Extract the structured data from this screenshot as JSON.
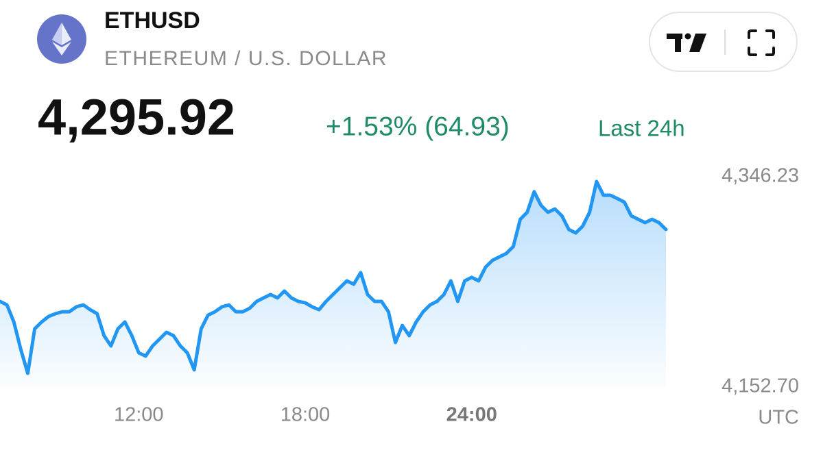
{
  "chart_data": {
    "type": "line",
    "title": "ETHUSD",
    "subtitle": "ETHEREUM / U.S. DOLLAR",
    "price": "4,295.92",
    "change": "+1.53% (64.93)",
    "change_period": "Last 24h",
    "timezone": "UTC",
    "x": [
      7,
      7.25,
      7.5,
      7.75,
      8,
      8.25,
      8.5,
      8.75,
      9,
      9.25,
      9.5,
      9.75,
      10,
      10.25,
      10.5,
      10.75,
      11,
      11.25,
      11.5,
      11.75,
      12,
      12.25,
      12.5,
      12.75,
      13,
      13.25,
      13.5,
      13.75,
      14,
      14.25,
      14.5,
      14.75,
      15,
      15.25,
      15.5,
      15.75,
      16,
      16.25,
      16.5,
      16.75,
      17,
      17.25,
      17.5,
      17.75,
      18,
      18.25,
      18.5,
      18.75,
      19,
      19.25,
      19.5,
      19.75,
      20,
      20.25,
      20.5,
      20.75,
      21,
      21.25,
      21.5,
      21.75,
      22,
      22.25,
      22.5,
      22.75,
      23,
      23.25,
      23.5,
      23.75,
      24,
      24.25,
      24.5,
      24.75,
      25,
      25.25,
      25.5,
      25.75,
      26,
      26.25,
      26.5,
      26.75,
      27,
      27.25,
      27.5,
      27.75,
      28,
      28.25,
      28.5,
      28.75,
      29,
      29.25,
      29.5,
      29.75,
      30,
      30.25,
      30.5,
      30.75,
      31
    ],
    "series": [
      {
        "name": "ETHUSD",
        "color": "#2196f3",
        "values": [
          4231.5,
          4228.3,
          4212.6,
          4187.4,
          4165.3,
          4206.3,
          4212.6,
          4217.6,
          4220.2,
          4222.0,
          4222.0,
          4226.5,
          4228.3,
          4223.9,
          4220.2,
          4200.0,
          4190.5,
          4206.3,
          4212.6,
          4200.0,
          4184.2,
          4181.1,
          4190.5,
          4196.8,
          4203.1,
          4200.0,
          4190.5,
          4184.2,
          4168.5,
          4206.3,
          4218.9,
          4222.0,
          4226.5,
          4228.3,
          4222.0,
          4222.0,
          4225.2,
          4231.5,
          4234.7,
          4237.8,
          4234.7,
          4241.0,
          4234.7,
          4231.5,
          4230.2,
          4226.5,
          4223.9,
          4231.5,
          4237.8,
          4244.1,
          4250.4,
          4247.3,
          4258.0,
          4237.8,
          4231.5,
          4231.5,
          4222.0,
          4193.7,
          4209.4,
          4200.0,
          4212.6,
          4222.0,
          4228.3,
          4231.5,
          4237.8,
          4250.4,
          4231.5,
          4250.4,
          4253.6,
          4250.4,
          4263.0,
          4269.3,
          4272.5,
          4275.6,
          4281.9,
          4307.1,
          4313.5,
          4332.4,
          4319.8,
          4313.5,
          4316.6,
          4310.3,
          4297.7,
          4294.5,
          4300.8,
          4313.5,
          4341.8,
          4329.2,
          4329.2,
          4326.1,
          4322.9,
          4310.3,
          4307.1,
          4304.0,
          4307.1,
          4304.0,
          4297.7
        ]
      }
    ],
    "xlim": [
      7,
      31.1
    ],
    "ylim": [
      4152.7,
      4346.23
    ],
    "xticks": [
      {
        "value": 12,
        "label": "12:00"
      },
      {
        "value": 18,
        "label": "18:00"
      },
      {
        "value": 24,
        "label": "24:00"
      }
    ],
    "yticks": [
      {
        "value": 4152.7,
        "label": "4,152.70"
      },
      {
        "value": 4346.23,
        "label": "4,346.23"
      }
    ],
    "change_color": "#1f8a68"
  }
}
